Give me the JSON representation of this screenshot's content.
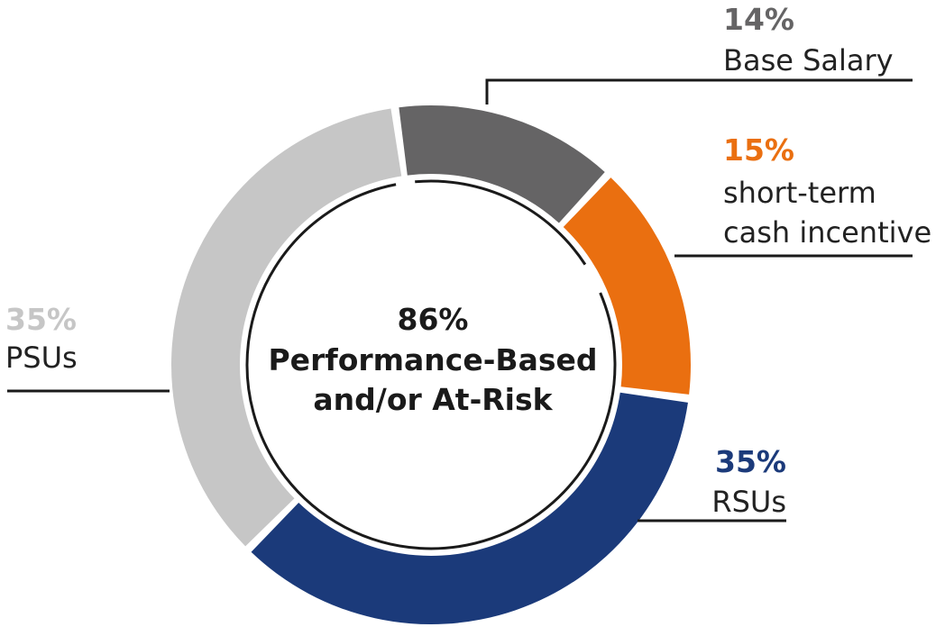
{
  "chart_data": {
    "type": "pie",
    "variant": "donut",
    "center_label": {
      "value": "86%",
      "line1": "Performance-Based",
      "line2": "and/or At-Risk"
    },
    "slices": [
      {
        "name": "Base Salary",
        "value": 14,
        "value_label": "14%",
        "lines": [
          "Base Salary"
        ],
        "color": "#656465"
      },
      {
        "name": "short-term cash incentive",
        "value": 15,
        "value_label": "15%",
        "lines": [
          "short-term",
          "cash incentive"
        ],
        "color": "#ea6f10"
      },
      {
        "name": "RSUs",
        "value": 35,
        "value_label": "35%",
        "lines": [
          "RSUs"
        ],
        "color": "#1b3a7a"
      },
      {
        "name": "PSUs",
        "value": 35,
        "value_label": "35%",
        "lines": [
          "PSUs"
        ],
        "color": "#c6c6c6"
      }
    ],
    "inner_arc_color": "#1a1a1a"
  }
}
